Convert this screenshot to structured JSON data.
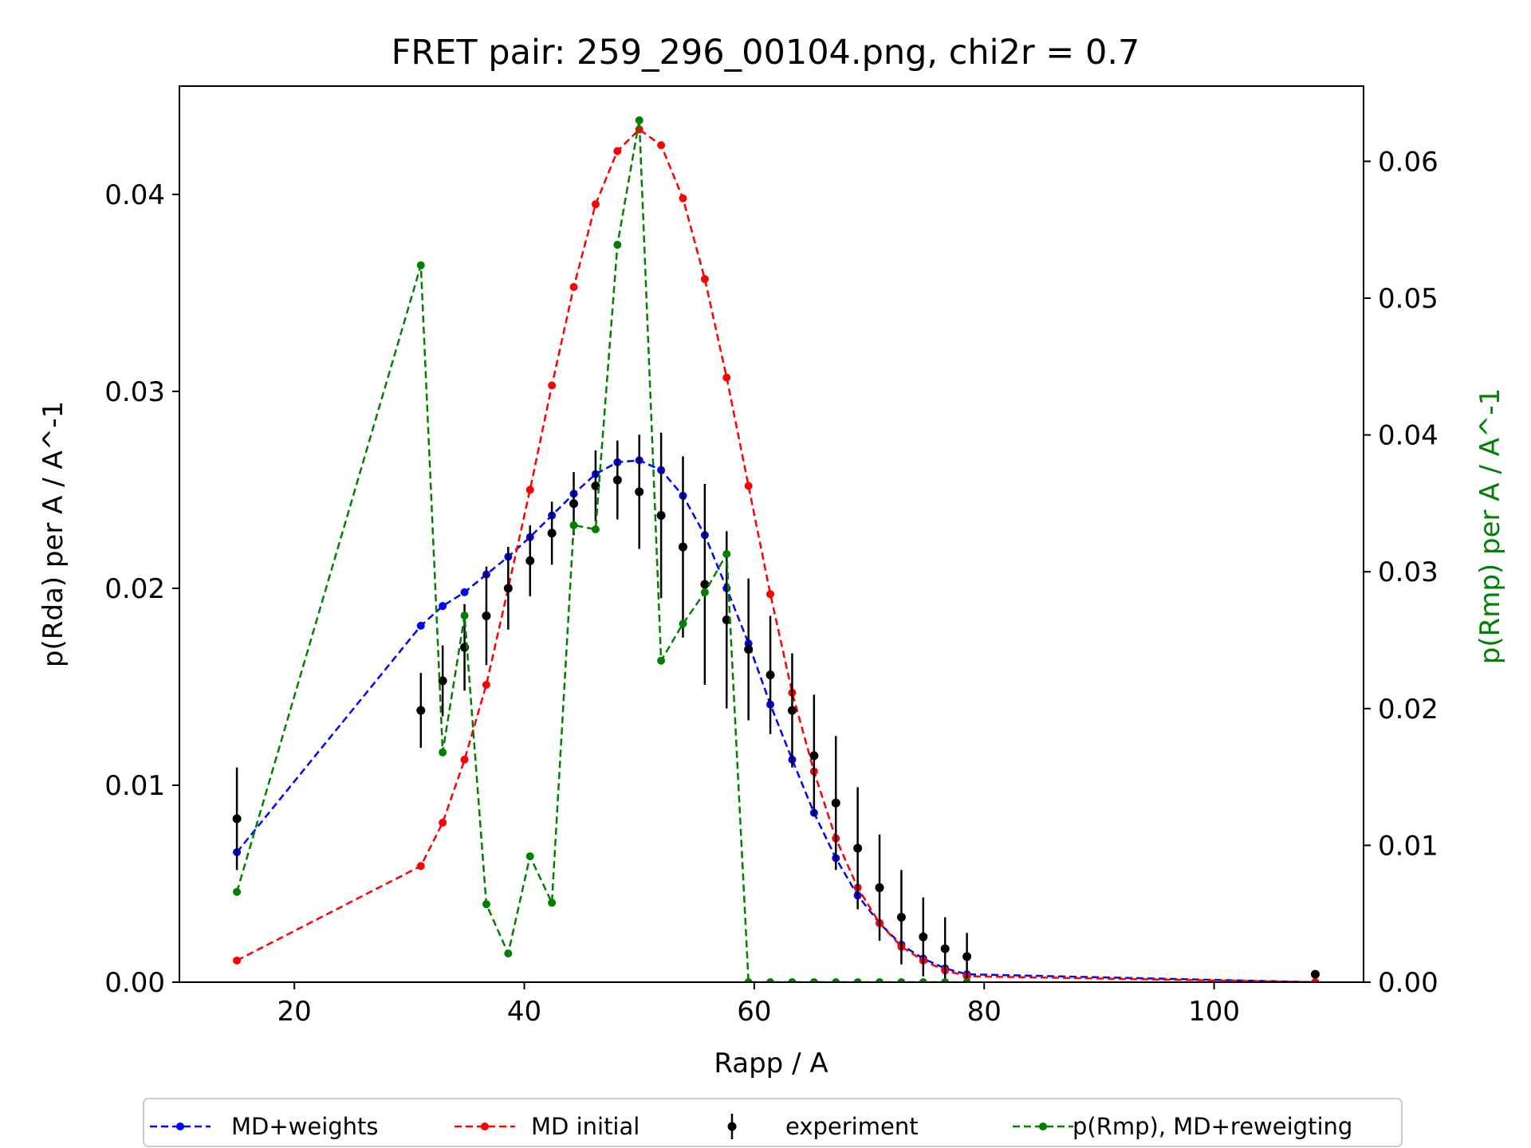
{
  "chart_data": {
    "type": "line",
    "title": "FRET pair: 259_296_00104.png, chi2r = 0.7",
    "xlabel": "Rapp / A",
    "ylabel": "p(Rda) per A / A^-1",
    "y2label": "p(Rmp) per A / A^-1",
    "xlim": [
      10,
      113
    ],
    "ylim": [
      0,
      0.0455
    ],
    "y2lim": [
      0,
      0.0655
    ],
    "xticks": [
      20,
      40,
      60,
      80,
      100
    ],
    "yticks": [
      "0.00",
      "0.01",
      "0.02",
      "0.03",
      "0.04"
    ],
    "y2ticks": [
      "0.00",
      "0.01",
      "0.02",
      "0.03",
      "0.04",
      "0.05",
      "0.06"
    ],
    "legend_position": "below",
    "colors": {
      "md_weights": "#0000ff",
      "md_initial": "#ff0000",
      "experiment": "#000000",
      "rmp": "#008000"
    },
    "series": [
      {
        "name": "MD+weights",
        "axis": "left",
        "style": "dashed-dot",
        "color": "#0000ff",
        "x": [
          15,
          31,
          32.9,
          34.8,
          36.7,
          38.6,
          40.5,
          42.4,
          44.3,
          46.2,
          48.1,
          50,
          51.9,
          53.8,
          55.7,
          57.6,
          59.5,
          61.4,
          63.3,
          65.2,
          67.1,
          69,
          70.9,
          72.8,
          74.7,
          76.6,
          78.5,
          108.8
        ],
        "y": [
          0.0066,
          0.0181,
          0.0191,
          0.0198,
          0.0207,
          0.0216,
          0.0226,
          0.0237,
          0.0248,
          0.0258,
          0.0264,
          0.0265,
          0.026,
          0.0247,
          0.0227,
          0.02,
          0.0172,
          0.0141,
          0.0113,
          0.0086,
          0.0063,
          0.0044,
          0.003,
          0.0019,
          0.0012,
          0.0007,
          0.0004,
          0.0
        ]
      },
      {
        "name": "MD initial",
        "axis": "left",
        "style": "dashed-dot",
        "color": "#ff0000",
        "x": [
          15,
          31,
          32.9,
          34.8,
          36.7,
          38.6,
          40.5,
          42.4,
          44.3,
          46.2,
          48.1,
          50,
          51.9,
          53.8,
          55.7,
          57.6,
          59.5,
          61.4,
          63.3,
          65.2,
          67.1,
          69,
          70.9,
          72.8,
          74.7,
          76.6,
          78.5,
          108.8
        ],
        "y": [
          0.0011,
          0.0059,
          0.0081,
          0.0113,
          0.0151,
          0.02,
          0.025,
          0.0303,
          0.0353,
          0.0395,
          0.0422,
          0.0433,
          0.0425,
          0.0398,
          0.0357,
          0.0307,
          0.0252,
          0.0197,
          0.0147,
          0.0107,
          0.0073,
          0.0048,
          0.003,
          0.0018,
          0.0011,
          0.0006,
          0.0003,
          0.0
        ]
      },
      {
        "name": "experiment",
        "axis": "left",
        "style": "errorbar",
        "color": "#000000",
        "x": [
          15,
          31,
          32.9,
          34.8,
          36.7,
          38.6,
          40.5,
          42.4,
          44.3,
          46.2,
          48.1,
          50,
          51.9,
          53.8,
          55.7,
          57.6,
          59.5,
          61.4,
          63.3,
          65.2,
          67.1,
          69,
          70.9,
          72.8,
          74.7,
          76.6,
          78.5,
          108.8
        ],
        "y": [
          0.0083,
          0.0138,
          0.0153,
          0.017,
          0.0186,
          0.02,
          0.0214,
          0.0228,
          0.0243,
          0.0252,
          0.0255,
          0.0249,
          0.0237,
          0.0221,
          0.0202,
          0.0184,
          0.0169,
          0.0156,
          0.0138,
          0.0115,
          0.0091,
          0.0068,
          0.0048,
          0.0033,
          0.0023,
          0.0017,
          0.0013,
          0.0004
        ],
        "err": [
          0.0026,
          0.0019,
          0.0018,
          0.0022,
          0.0025,
          0.0021,
          0.0018,
          0.0016,
          0.0016,
          0.0018,
          0.002,
          0.0029,
          0.0042,
          0.0046,
          0.0051,
          0.0045,
          0.0036,
          0.003,
          0.0029,
          0.0031,
          0.0034,
          0.0031,
          0.0027,
          0.0024,
          0.002,
          0.0016,
          0.0012,
          0.0002
        ]
      },
      {
        "name": "p(Rmp), MD+reweigting",
        "axis": "right",
        "style": "dashed-dot",
        "color": "#008000",
        "x": [
          15,
          31,
          32.9,
          34.8,
          36.7,
          38.6,
          40.5,
          42.4,
          44.3,
          46.2,
          48.1,
          50,
          51.9,
          53.8,
          55.7,
          57.6,
          59.5,
          61.4,
          63.3,
          65.2,
          67.1,
          69,
          70.9,
          72.8,
          74.7,
          76.6,
          78.5
        ],
        "y": [
          0.0066,
          0.0524,
          0.0168,
          0.0268,
          0.0057,
          0.0021,
          0.0092,
          0.0058,
          0.0334,
          0.0331,
          0.0539,
          0.063,
          0.0235,
          0.0262,
          0.0285,
          0.0313,
          0.0,
          0.0,
          0.0,
          0.0,
          0.0,
          0.0,
          0.0,
          0.0,
          0.0,
          0.0,
          0.0
        ]
      }
    ]
  }
}
